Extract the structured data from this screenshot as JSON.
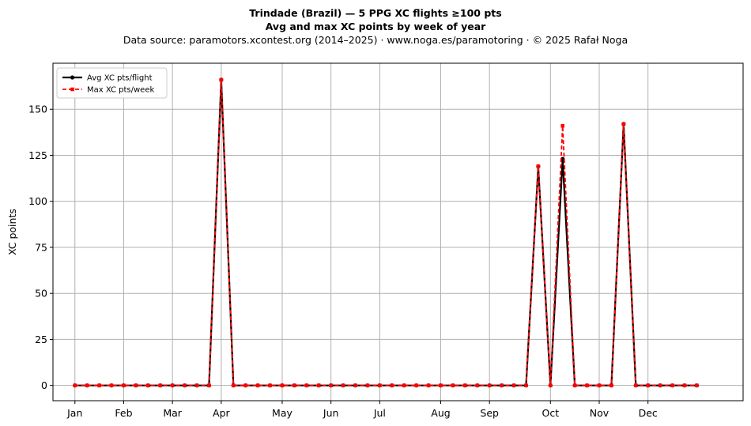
{
  "chart_data": {
    "type": "line",
    "title": "Trindade (Brazil)  —  5 PPG XC flights ≥100 pts",
    "subtitle": "Avg and max XC points by week of year",
    "source": "Data source: paramotors.xcontest.org (2014–2025)  ·  www.noga.es/paramotoring  ·  © 2025 Rafał Noga",
    "xlabel": "",
    "ylabel": "XC points",
    "xlim": [
      -1.8,
      54.8
    ],
    "ylim": [
      -8.3,
      175
    ],
    "grid": true,
    "legend_position": "upper-left",
    "x_ticks": [
      {
        "label": "Jan",
        "x": 0
      },
      {
        "label": "Feb",
        "x": 4
      },
      {
        "label": "Mar",
        "x": 8
      },
      {
        "label": "Apr",
        "x": 12
      },
      {
        "label": "May",
        "x": 17
      },
      {
        "label": "Jun",
        "x": 21
      },
      {
        "label": "Jul",
        "x": 25
      },
      {
        "label": "Aug",
        "x": 30
      },
      {
        "label": "Sep",
        "x": 34
      },
      {
        "label": "Oct",
        "x": 39
      },
      {
        "label": "Nov",
        "x": 43
      },
      {
        "label": "Dec",
        "x": 47
      }
    ],
    "y_ticks": [
      0,
      25,
      50,
      75,
      100,
      125,
      150
    ],
    "x": [
      0,
      1,
      2,
      3,
      4,
      5,
      6,
      7,
      8,
      9,
      10,
      11,
      12,
      13,
      14,
      15,
      16,
      17,
      18,
      19,
      20,
      21,
      22,
      23,
      24,
      25,
      26,
      27,
      28,
      29,
      30,
      31,
      32,
      33,
      34,
      35,
      36,
      37,
      38,
      39,
      40,
      41,
      42,
      43,
      44,
      45,
      46,
      47,
      48,
      49,
      50,
      51
    ],
    "series": [
      {
        "name": "Avg XC pts/flight",
        "color": "#000000",
        "style": "solid-circle",
        "values": [
          0,
          0,
          0,
          0,
          0,
          0,
          0,
          0,
          0,
          0,
          0,
          0,
          166,
          0,
          0,
          0,
          0,
          0,
          0,
          0,
          0,
          0,
          0,
          0,
          0,
          0,
          0,
          0,
          0,
          0,
          0,
          0,
          0,
          0,
          0,
          0,
          0,
          0,
          119,
          0,
          123,
          0,
          0,
          0,
          0,
          142,
          0,
          0,
          0,
          0,
          0,
          0
        ]
      },
      {
        "name": "Max XC pts/week",
        "color": "#ff0000",
        "style": "dashed-square",
        "values": [
          0,
          0,
          0,
          0,
          0,
          0,
          0,
          0,
          0,
          0,
          0,
          0,
          166,
          0,
          0,
          0,
          0,
          0,
          0,
          0,
          0,
          0,
          0,
          0,
          0,
          0,
          0,
          0,
          0,
          0,
          0,
          0,
          0,
          0,
          0,
          0,
          0,
          0,
          119,
          0,
          141,
          0,
          0,
          0,
          0,
          142,
          0,
          0,
          0,
          0,
          0,
          0
        ]
      }
    ]
  }
}
